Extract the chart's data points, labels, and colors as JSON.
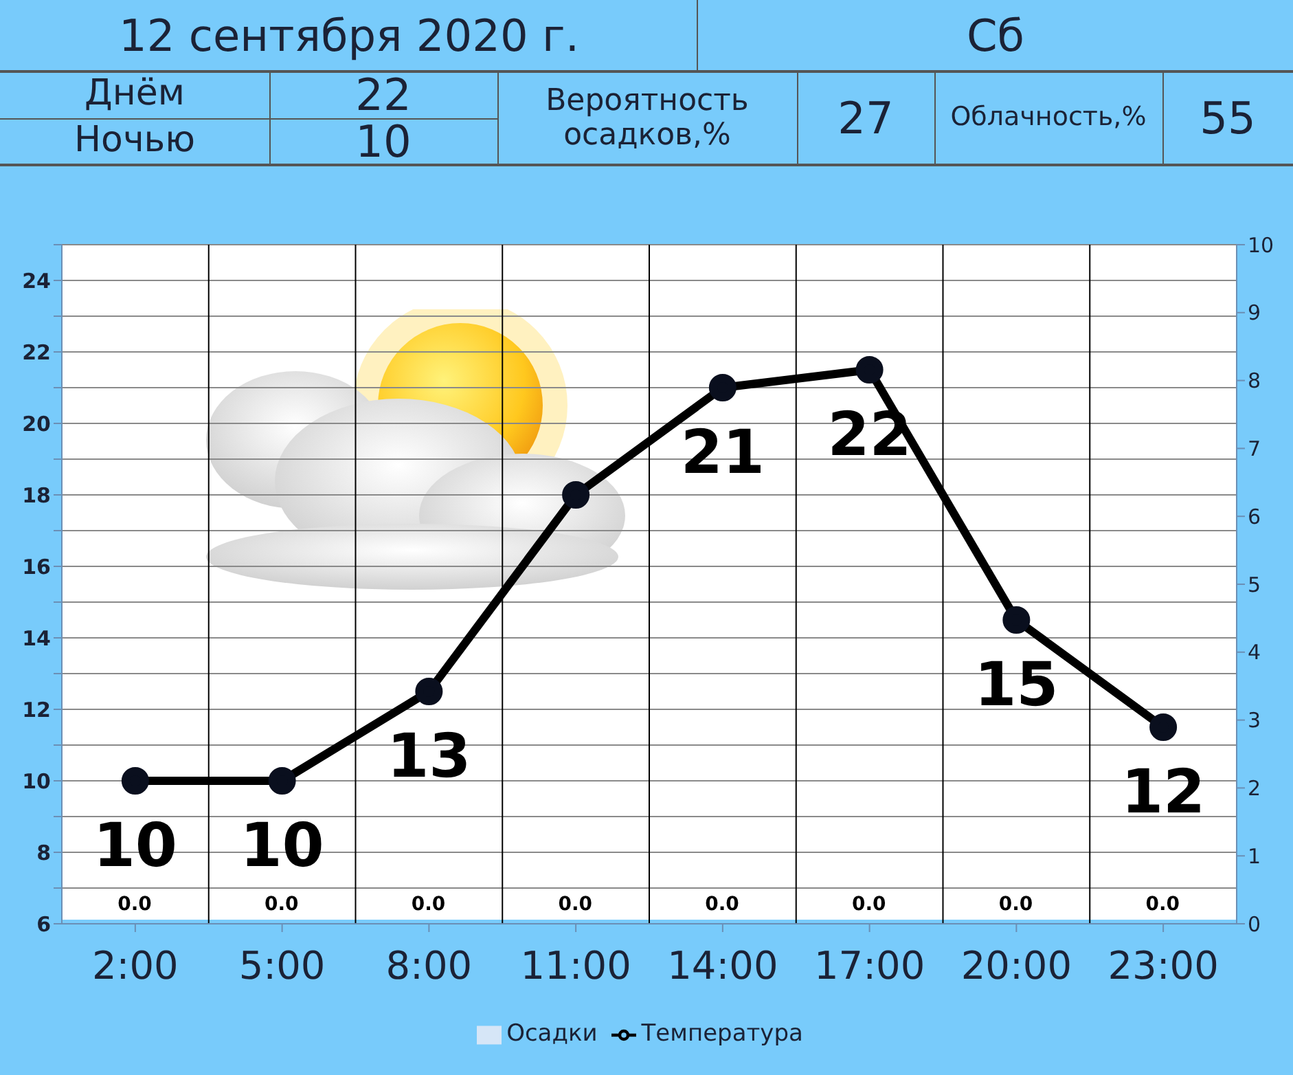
{
  "chart_data": {
    "type": "line",
    "title": "12 сентября 2020 г.",
    "annotations": [
      "Сб",
      "Днём",
      "22",
      "Ночью",
      "10",
      "Вероятность осадков,%",
      "27",
      "Облачность,%",
      "55"
    ],
    "categories": [
      "2:00",
      "5:00",
      "8:00",
      "11:00",
      "14:00",
      "17:00",
      "20:00",
      "23:00"
    ],
    "series": [
      {
        "name": "Осадки",
        "type": "bar",
        "axis": "y2",
        "color": "#d6e6f7",
        "values": [
          0,
          0,
          0,
          0,
          0,
          0,
          0,
          0
        ],
        "value_labels": [
          "0.0",
          "0.0",
          "0.0",
          "0.0",
          "0.0",
          "0.0",
          "0.0",
          "0.0"
        ]
      },
      {
        "name": "Температура",
        "color": "#000000",
        "values": [
          10,
          10,
          12.5,
          18,
          21,
          21.5,
          14.5,
          11.5
        ],
        "value_labels": [
          "10",
          "10",
          "13",
          null,
          "21",
          "22",
          "15",
          "12"
        ]
      }
    ],
    "ylim": [
      6,
      25
    ],
    "yticks": [
      6,
      {
        "value": 7,
        "label": null
      },
      8,
      {
        "value": 9,
        "label": null
      },
      10,
      {
        "value": 11,
        "label": null
      },
      12,
      {
        "value": 13,
        "label": null
      },
      14,
      {
        "value": 15,
        "label": null
      },
      16,
      {
        "value": 17,
        "label": null
      },
      18,
      {
        "value": 19,
        "label": null
      },
      20,
      {
        "value": 21,
        "label": null
      },
      22,
      {
        "value": 23,
        "label": null
      },
      24,
      {
        "value": 25,
        "label": null
      }
    ],
    "y2lim": [
      0,
      10
    ],
    "y2ticks": [
      0,
      1,
      2,
      3,
      4,
      5,
      6,
      7,
      8,
      9,
      10
    ],
    "grid": true,
    "legend": "bottom",
    "marker": "circle",
    "line_style": "solid"
  }
}
